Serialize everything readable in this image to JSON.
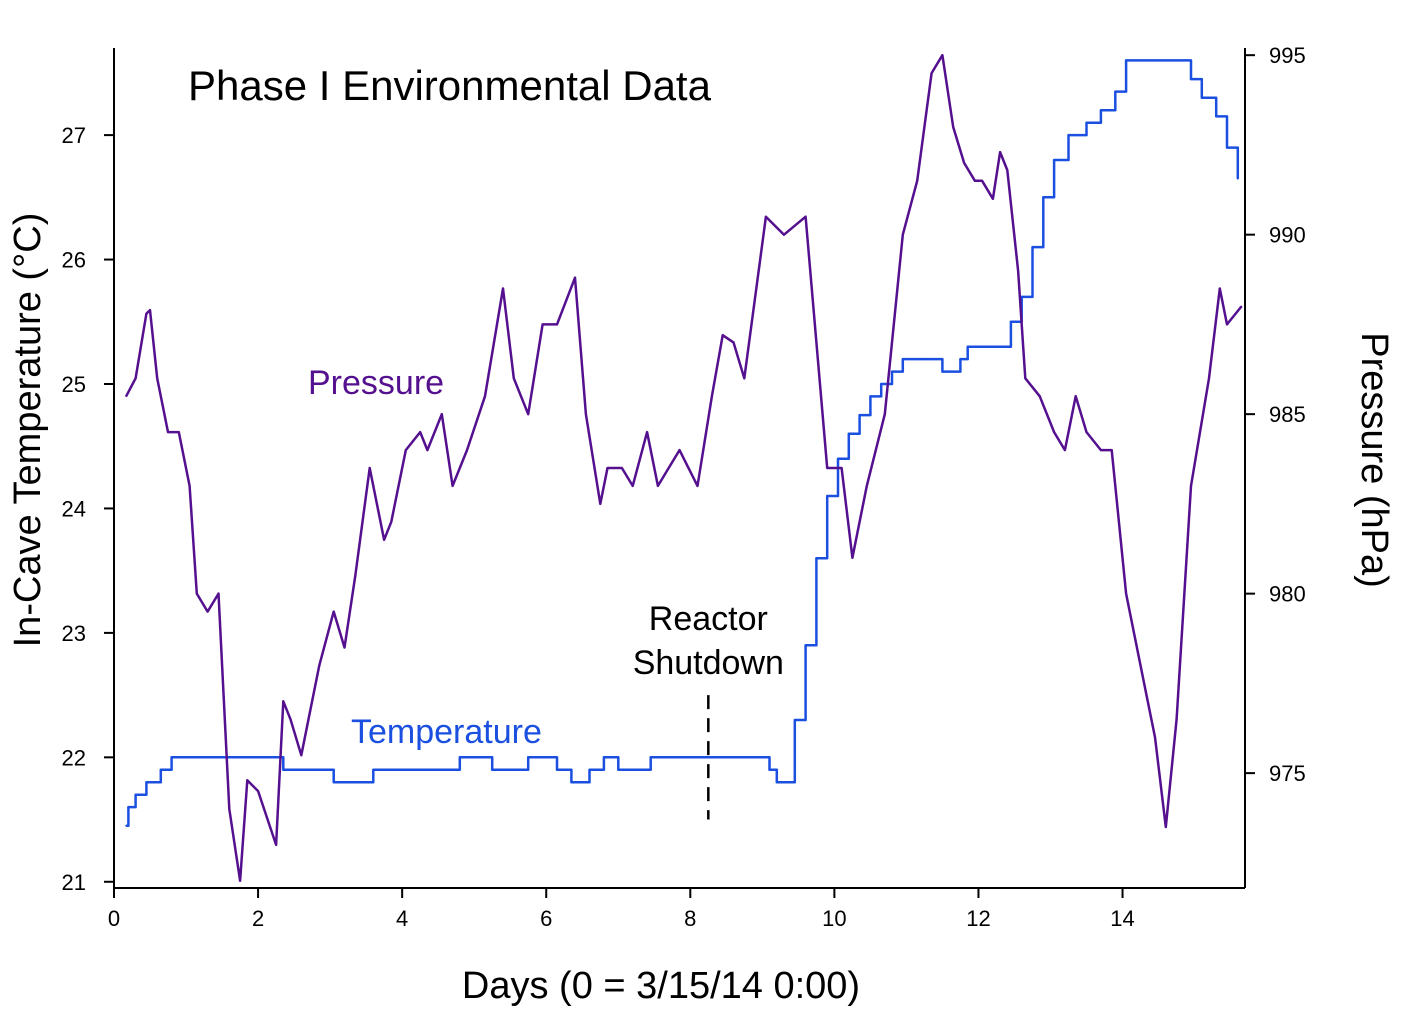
{
  "chart_data": {
    "type": "line",
    "title": "Phase I Environmental Data",
    "xlabel": "Days (0 = 3/15/14 0:00)",
    "ylabel_left": "In-Cave Temperature (°C)",
    "ylabel_right": "Pressure (hPa)",
    "xlim": [
      0,
      15.7
    ],
    "ylim_left": [
      20.95,
      27.7
    ],
    "ylim_right": [
      971.8,
      995.2
    ],
    "x_ticks": [
      0,
      2,
      4,
      6,
      8,
      10,
      12,
      14
    ],
    "x_tick_labels": [
      "0",
      "2",
      "4",
      "6",
      "8",
      "10",
      "12",
      "14"
    ],
    "y_left_ticks": [
      21,
      22,
      23,
      24,
      25,
      26,
      27
    ],
    "y_left_tick_labels": [
      "21",
      "22",
      "23",
      "24",
      "25",
      "26",
      "27"
    ],
    "y_right_ticks": [
      975,
      980,
      985,
      990,
      995
    ],
    "y_right_tick_labels": [
      "975",
      "980",
      "985",
      "990",
      "995"
    ],
    "grid": false,
    "annotation": {
      "lines": [
        "Reactor",
        "Shutdown"
      ],
      "x": 8.25,
      "line_y_range": [
        21.5,
        22.5
      ]
    },
    "series": [
      {
        "name": "Temperature",
        "axis": "left",
        "color": "#1a4fe0",
        "step": true,
        "x": [
          0.17,
          0.2,
          0.3,
          0.45,
          0.65,
          0.8,
          2.3,
          2.35,
          3.0,
          3.05,
          3.55,
          3.6,
          4.7,
          4.8,
          5.2,
          5.25,
          5.7,
          5.75,
          6.1,
          6.15,
          6.3,
          6.35,
          6.55,
          6.6,
          6.75,
          6.8,
          6.95,
          7.0,
          7.4,
          7.45,
          9.05,
          9.1,
          9.2,
          9.35,
          9.45,
          9.6,
          9.75,
          9.9,
          10.05,
          10.2,
          10.35,
          10.5,
          10.65,
          10.8,
          10.95,
          11.25,
          11.5,
          11.6,
          11.75,
          11.85,
          12.45,
          12.6,
          12.75,
          12.9,
          13.05,
          13.25,
          13.5,
          13.7,
          13.9,
          14.05,
          14.3,
          14.5,
          14.8,
          14.95,
          15.1,
          15.3,
          15.45,
          15.6
        ],
        "values": [
          21.45,
          21.6,
          21.7,
          21.8,
          21.9,
          22.0,
          22.0,
          21.9,
          21.9,
          21.8,
          21.8,
          21.9,
          21.9,
          22.0,
          22.0,
          21.9,
          21.9,
          22.0,
          22.0,
          21.9,
          21.9,
          21.8,
          21.8,
          21.9,
          21.9,
          22.0,
          22.0,
          21.9,
          21.9,
          22.0,
          22.0,
          21.9,
          21.8,
          21.8,
          22.3,
          22.9,
          23.6,
          24.1,
          24.4,
          24.6,
          24.75,
          24.9,
          25.0,
          25.1,
          25.2,
          25.2,
          25.1,
          25.1,
          25.2,
          25.3,
          25.5,
          25.7,
          26.1,
          26.5,
          26.8,
          27.0,
          27.1,
          27.2,
          27.35,
          27.6,
          27.6,
          27.6,
          27.6,
          27.45,
          27.3,
          27.15,
          26.9,
          26.65
        ]
      },
      {
        "name": "Pressure",
        "axis": "right",
        "color": "#55108f",
        "step": false,
        "x": [
          0.17,
          0.3,
          0.45,
          0.5,
          0.6,
          0.75,
          0.9,
          1.05,
          1.15,
          1.3,
          1.45,
          1.55,
          1.6,
          1.75,
          1.85,
          2.0,
          2.25,
          2.35,
          2.45,
          2.6,
          2.7,
          2.85,
          3.05,
          3.2,
          3.35,
          3.55,
          3.75,
          3.85,
          4.05,
          4.25,
          4.35,
          4.55,
          4.7,
          4.9,
          5.15,
          5.4,
          5.55,
          5.75,
          5.95,
          6.15,
          6.4,
          6.55,
          6.75,
          6.85,
          7.05,
          7.2,
          7.4,
          7.55,
          7.85,
          8.1,
          8.3,
          8.45,
          8.6,
          8.75,
          9.05,
          9.3,
          9.6,
          9.75,
          9.9,
          10.1,
          10.25,
          10.45,
          10.7,
          10.95,
          11.15,
          11.35,
          11.5,
          11.65,
          11.8,
          11.95,
          12.05,
          12.2,
          12.3,
          12.4,
          12.55,
          12.65,
          12.85,
          13.05,
          13.2,
          13.35,
          13.5,
          13.7,
          13.85,
          14.05,
          14.25,
          14.45,
          14.6,
          14.75,
          14.95,
          15.2,
          15.35,
          15.45,
          15.65
        ],
        "values": [
          985.5,
          986.0,
          987.8,
          987.9,
          986.0,
          984.5,
          984.5,
          983.0,
          980.0,
          979.5,
          980.0,
          976.0,
          974.0,
          972.0,
          974.8,
          974.5,
          973.0,
          977.0,
          976.5,
          975.5,
          976.5,
          978.0,
          979.5,
          978.5,
          980.5,
          983.5,
          981.5,
          982.0,
          984.0,
          984.5,
          984.0,
          985.0,
          983.0,
          984.0,
          985.5,
          988.5,
          986.0,
          985.0,
          987.5,
          987.5,
          988.8,
          985.0,
          982.5,
          983.5,
          983.5,
          983.0,
          984.5,
          983.0,
          984.0,
          983.0,
          985.5,
          987.2,
          987.0,
          986.0,
          990.5,
          990.0,
          990.5,
          987.0,
          983.5,
          983.5,
          981.0,
          983.0,
          985.0,
          990.0,
          991.5,
          994.5,
          995.0,
          993.0,
          992.0,
          991.5,
          991.5,
          991.0,
          992.3,
          991.8,
          989.0,
          986.0,
          985.5,
          984.5,
          984.0,
          985.5,
          984.5,
          984.0,
          984.0,
          980.0,
          978.0,
          976.0,
          973.5,
          976.5,
          983.0,
          986.0,
          988.5,
          987.5,
          988.0
        ]
      }
    ]
  }
}
